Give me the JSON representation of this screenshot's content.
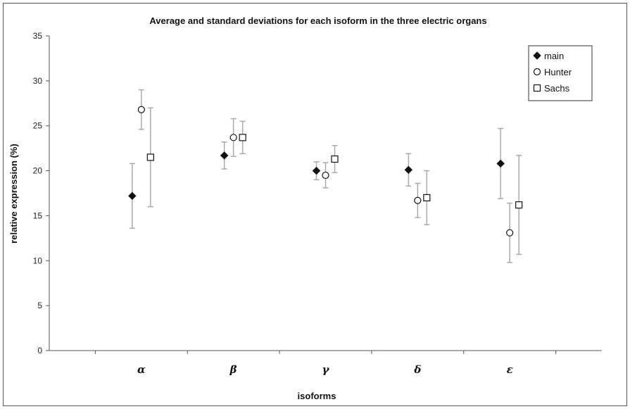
{
  "chart_data": {
    "type": "scatter",
    "title": "Average and standard deviations for each isoform in the three electric organs",
    "xlabel": "isoforms",
    "ylabel": "relative expression (%)",
    "ylim": [
      0,
      35
    ],
    "yticks": [
      "0",
      "5",
      "10",
      "15",
      "20",
      "25",
      "30",
      "35"
    ],
    "categories": [
      "α",
      "β",
      "γ",
      "δ",
      "ε"
    ],
    "legend_position": "top-right",
    "grid": false,
    "series": [
      {
        "name": "main",
        "marker": "diamond-filled",
        "color": "#111111",
        "values": [
          17.2,
          21.7,
          20.0,
          20.1,
          20.8
        ],
        "errors": [
          3.6,
          1.5,
          1.0,
          1.8,
          3.9
        ]
      },
      {
        "name": "Hunter",
        "marker": "circle-open",
        "color": "#111111",
        "values": [
          26.8,
          23.7,
          19.5,
          16.7,
          13.1
        ],
        "errors": [
          2.2,
          2.1,
          1.4,
          1.9,
          3.3
        ]
      },
      {
        "name": "Sachs",
        "marker": "square-open",
        "color": "#111111",
        "values": [
          21.5,
          23.7,
          21.3,
          17.0,
          16.2
        ],
        "errors": [
          5.5,
          1.8,
          1.5,
          3.0,
          5.5
        ]
      }
    ],
    "errorbar_color": "#aaaaaa"
  }
}
